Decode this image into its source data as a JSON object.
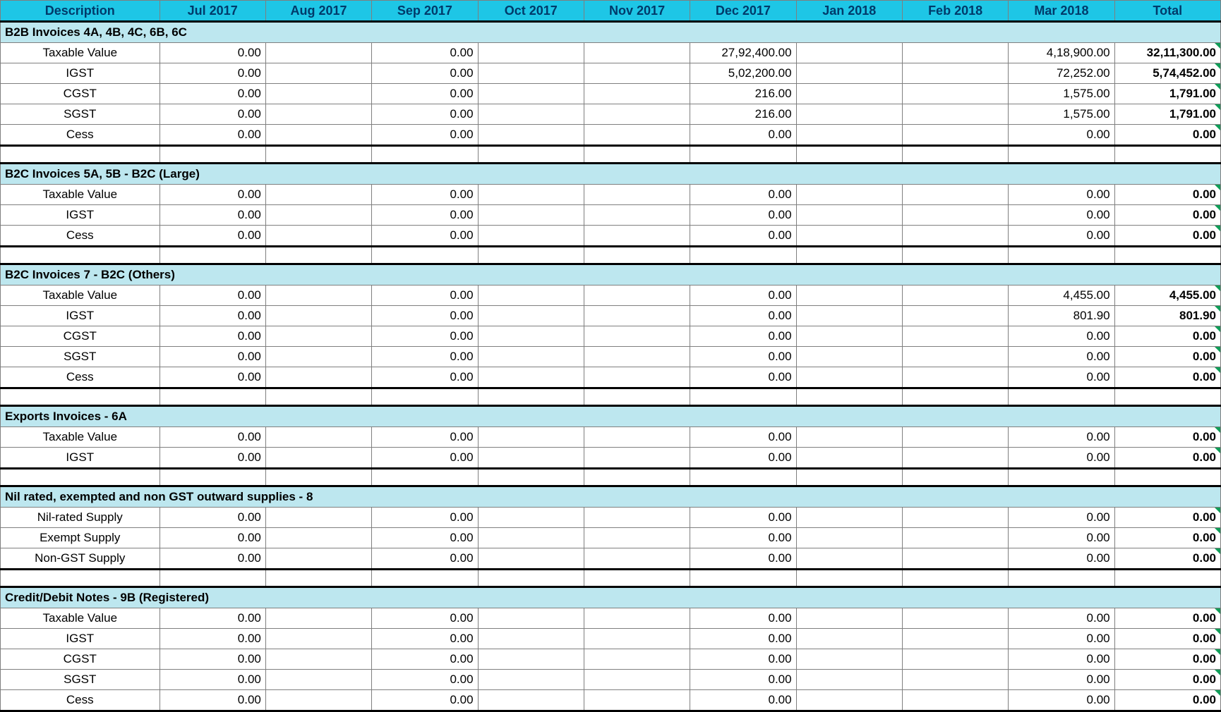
{
  "colors": {
    "header_bg": "#1ec6e6",
    "header_text": "#003a6a",
    "section_bg": "#bde7ef",
    "border": "#7f7f7f",
    "thick_border": "#000000",
    "tick": "#0f9d58",
    "background": "#ffffff"
  },
  "typography": {
    "font_family": "Arial, Helvetica, sans-serif",
    "header_fontsize_pt": 13,
    "body_fontsize_pt": 12,
    "header_weight": "700",
    "section_weight": "700",
    "total_weight": "700"
  },
  "columns": [
    "Description",
    "Jul 2017",
    "Aug 2017",
    "Sep 2017",
    "Oct 2017",
    "Nov 2017",
    "Dec 2017",
    "Jan 2018",
    "Feb 2018",
    "Mar 2018",
    "Total"
  ],
  "value_month_cols": [
    "Jul 2017",
    "Sep 2017",
    "Dec 2017",
    "Mar 2018"
  ],
  "blank_month_cols": [
    "Aug 2017",
    "Oct 2017",
    "Nov 2017",
    "Jan 2018",
    "Feb 2018"
  ],
  "sections": [
    {
      "title": "B2B Invoices  4A, 4B, 4C, 6B, 6C",
      "rows": [
        {
          "label": "Taxable Value",
          "Jul 2017": "0.00",
          "Sep 2017": "0.00",
          "Dec 2017": "27,92,400.00",
          "Mar 2018": "4,18,900.00",
          "Total": "32,11,300.00"
        },
        {
          "label": "IGST",
          "Jul 2017": "0.00",
          "Sep 2017": "0.00",
          "Dec 2017": "5,02,200.00",
          "Mar 2018": "72,252.00",
          "Total": "5,74,452.00"
        },
        {
          "label": "CGST",
          "Jul 2017": "0.00",
          "Sep 2017": "0.00",
          "Dec 2017": "216.00",
          "Mar 2018": "1,575.00",
          "Total": "1,791.00"
        },
        {
          "label": "SGST",
          "Jul 2017": "0.00",
          "Sep 2017": "0.00",
          "Dec 2017": "216.00",
          "Mar 2018": "1,575.00",
          "Total": "1,791.00"
        },
        {
          "label": "Cess",
          "Jul 2017": "0.00",
          "Sep 2017": "0.00",
          "Dec 2017": "0.00",
          "Mar 2018": "0.00",
          "Total": "0.00"
        }
      ]
    },
    {
      "title": "B2C Invoices 5A, 5B - B2C (Large)",
      "rows": [
        {
          "label": "Taxable Value",
          "Jul 2017": "0.00",
          "Sep 2017": "0.00",
          "Dec 2017": "0.00",
          "Mar 2018": "0.00",
          "Total": "0.00"
        },
        {
          "label": "IGST",
          "Jul 2017": "0.00",
          "Sep 2017": "0.00",
          "Dec 2017": "0.00",
          "Mar 2018": "0.00",
          "Total": "0.00"
        },
        {
          "label": "Cess",
          "Jul 2017": "0.00",
          "Sep 2017": "0.00",
          "Dec 2017": "0.00",
          "Mar 2018": "0.00",
          "Total": "0.00"
        }
      ]
    },
    {
      "title": "B2C Invoices 7 - B2C (Others)",
      "rows": [
        {
          "label": "Taxable Value",
          "Jul 2017": "0.00",
          "Sep 2017": "0.00",
          "Dec 2017": "0.00",
          "Mar 2018": "4,455.00",
          "Total": "4,455.00"
        },
        {
          "label": "IGST",
          "Jul 2017": "0.00",
          "Sep 2017": "0.00",
          "Dec 2017": "0.00",
          "Mar 2018": "801.90",
          "Total": "801.90"
        },
        {
          "label": "CGST",
          "Jul 2017": "0.00",
          "Sep 2017": "0.00",
          "Dec 2017": "0.00",
          "Mar 2018": "0.00",
          "Total": "0.00"
        },
        {
          "label": "SGST",
          "Jul 2017": "0.00",
          "Sep 2017": "0.00",
          "Dec 2017": "0.00",
          "Mar 2018": "0.00",
          "Total": "0.00"
        },
        {
          "label": "Cess",
          "Jul 2017": "0.00",
          "Sep 2017": "0.00",
          "Dec 2017": "0.00",
          "Mar 2018": "0.00",
          "Total": "0.00"
        }
      ]
    },
    {
      "title": "Exports Invoices - 6A",
      "rows": [
        {
          "label": "Taxable Value",
          "Jul 2017": "0.00",
          "Sep 2017": "0.00",
          "Dec 2017": "0.00",
          "Mar 2018": "0.00",
          "Total": "0.00"
        },
        {
          "label": "IGST",
          "Jul 2017": "0.00",
          "Sep 2017": "0.00",
          "Dec 2017": "0.00",
          "Mar 2018": "0.00",
          "Total": "0.00"
        }
      ]
    },
    {
      "title": "Nil rated, exempted and non GST outward supplies - 8",
      "rows": [
        {
          "label": "Nil-rated Supply",
          "Jul 2017": "0.00",
          "Sep 2017": "0.00",
          "Dec 2017": "0.00",
          "Mar 2018": "0.00",
          "Total": "0.00"
        },
        {
          "label": "Exempt Supply",
          "Jul 2017": "0.00",
          "Sep 2017": "0.00",
          "Dec 2017": "0.00",
          "Mar 2018": "0.00",
          "Total": "0.00"
        },
        {
          "label": "Non-GST Supply",
          "Jul 2017": "0.00",
          "Sep 2017": "0.00",
          "Dec 2017": "0.00",
          "Mar 2018": "0.00",
          "Total": "0.00"
        }
      ]
    },
    {
      "title": "Credit/Debit Notes - 9B (Registered)",
      "rows": [
        {
          "label": "Taxable Value",
          "Jul 2017": "0.00",
          "Sep 2017": "0.00",
          "Dec 2017": "0.00",
          "Mar 2018": "0.00",
          "Total": "0.00"
        },
        {
          "label": "IGST",
          "Jul 2017": "0.00",
          "Sep 2017": "0.00",
          "Dec 2017": "0.00",
          "Mar 2018": "0.00",
          "Total": "0.00"
        },
        {
          "label": "CGST",
          "Jul 2017": "0.00",
          "Sep 2017": "0.00",
          "Dec 2017": "0.00",
          "Mar 2018": "0.00",
          "Total": "0.00"
        },
        {
          "label": "SGST",
          "Jul 2017": "0.00",
          "Sep 2017": "0.00",
          "Dec 2017": "0.00",
          "Mar 2018": "0.00",
          "Total": "0.00"
        },
        {
          "label": "Cess",
          "Jul 2017": "0.00",
          "Sep 2017": "0.00",
          "Dec 2017": "0.00",
          "Mar 2018": "0.00",
          "Total": "0.00"
        }
      ]
    }
  ]
}
